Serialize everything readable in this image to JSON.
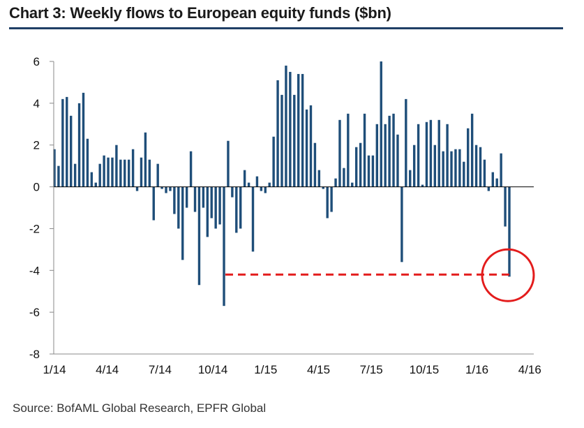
{
  "title": "Chart 3: Weekly flows to European equity funds ($bn)",
  "source": "Source: BofAML Global Research, EPFR Global",
  "chart_data": {
    "type": "bar",
    "ylim": [
      -8,
      6
    ],
    "yticks": [
      "6",
      "4",
      "2",
      "0",
      "-2",
      "-4",
      "-6",
      "-8"
    ],
    "ytick_values": [
      6,
      4,
      2,
      0,
      -2,
      -4,
      -6,
      -8
    ],
    "xticks": [
      "1/14",
      "4/14",
      "7/14",
      "10/14",
      "1/15",
      "4/15",
      "7/15",
      "10/15",
      "1/16",
      "4/16"
    ],
    "bar_color": "#1f4e79",
    "values": [
      1.8,
      1.0,
      4.2,
      4.3,
      3.4,
      1.1,
      4.0,
      4.5,
      2.3,
      0.7,
      0.2,
      1.1,
      1.5,
      1.4,
      1.4,
      2.0,
      1.3,
      1.3,
      1.3,
      1.8,
      -0.2,
      1.4,
      2.6,
      1.3,
      -1.6,
      1.1,
      -0.1,
      -0.3,
      -0.2,
      -1.3,
      -2.0,
      -3.5,
      -1.0,
      1.7,
      -1.2,
      -4.7,
      -1.0,
      -2.4,
      -1.5,
      -2.0,
      -1.8,
      -5.7,
      2.2,
      -0.5,
      -2.2,
      -2.0,
      0.8,
      0.2,
      -3.1,
      0.5,
      -0.2,
      -0.3,
      0.2,
      2.4,
      5.1,
      4.4,
      5.8,
      5.5,
      4.4,
      5.4,
      5.4,
      3.7,
      3.9,
      2.1,
      0.8,
      -0.1,
      -1.5,
      -1.2,
      0.4,
      3.2,
      0.9,
      3.5,
      0.2,
      1.9,
      2.1,
      3.5,
      1.5,
      1.5,
      3.0,
      6.0,
      3.0,
      3.4,
      3.5,
      2.5,
      -3.6,
      4.2,
      0.8,
      2.0,
      3.0,
      0.1,
      3.1,
      3.2,
      2.0,
      3.2,
      1.7,
      3.0,
      1.7,
      1.8,
      1.8,
      1.2,
      2.8,
      3.5,
      2.0,
      1.9,
      1.3,
      -0.2,
      0.7,
      0.4,
      1.6,
      -1.9,
      -4.3
    ],
    "reference_level": -4.2,
    "reference_line_color": "#e31c1c",
    "highlight_circle_color": "#e31c1c"
  }
}
